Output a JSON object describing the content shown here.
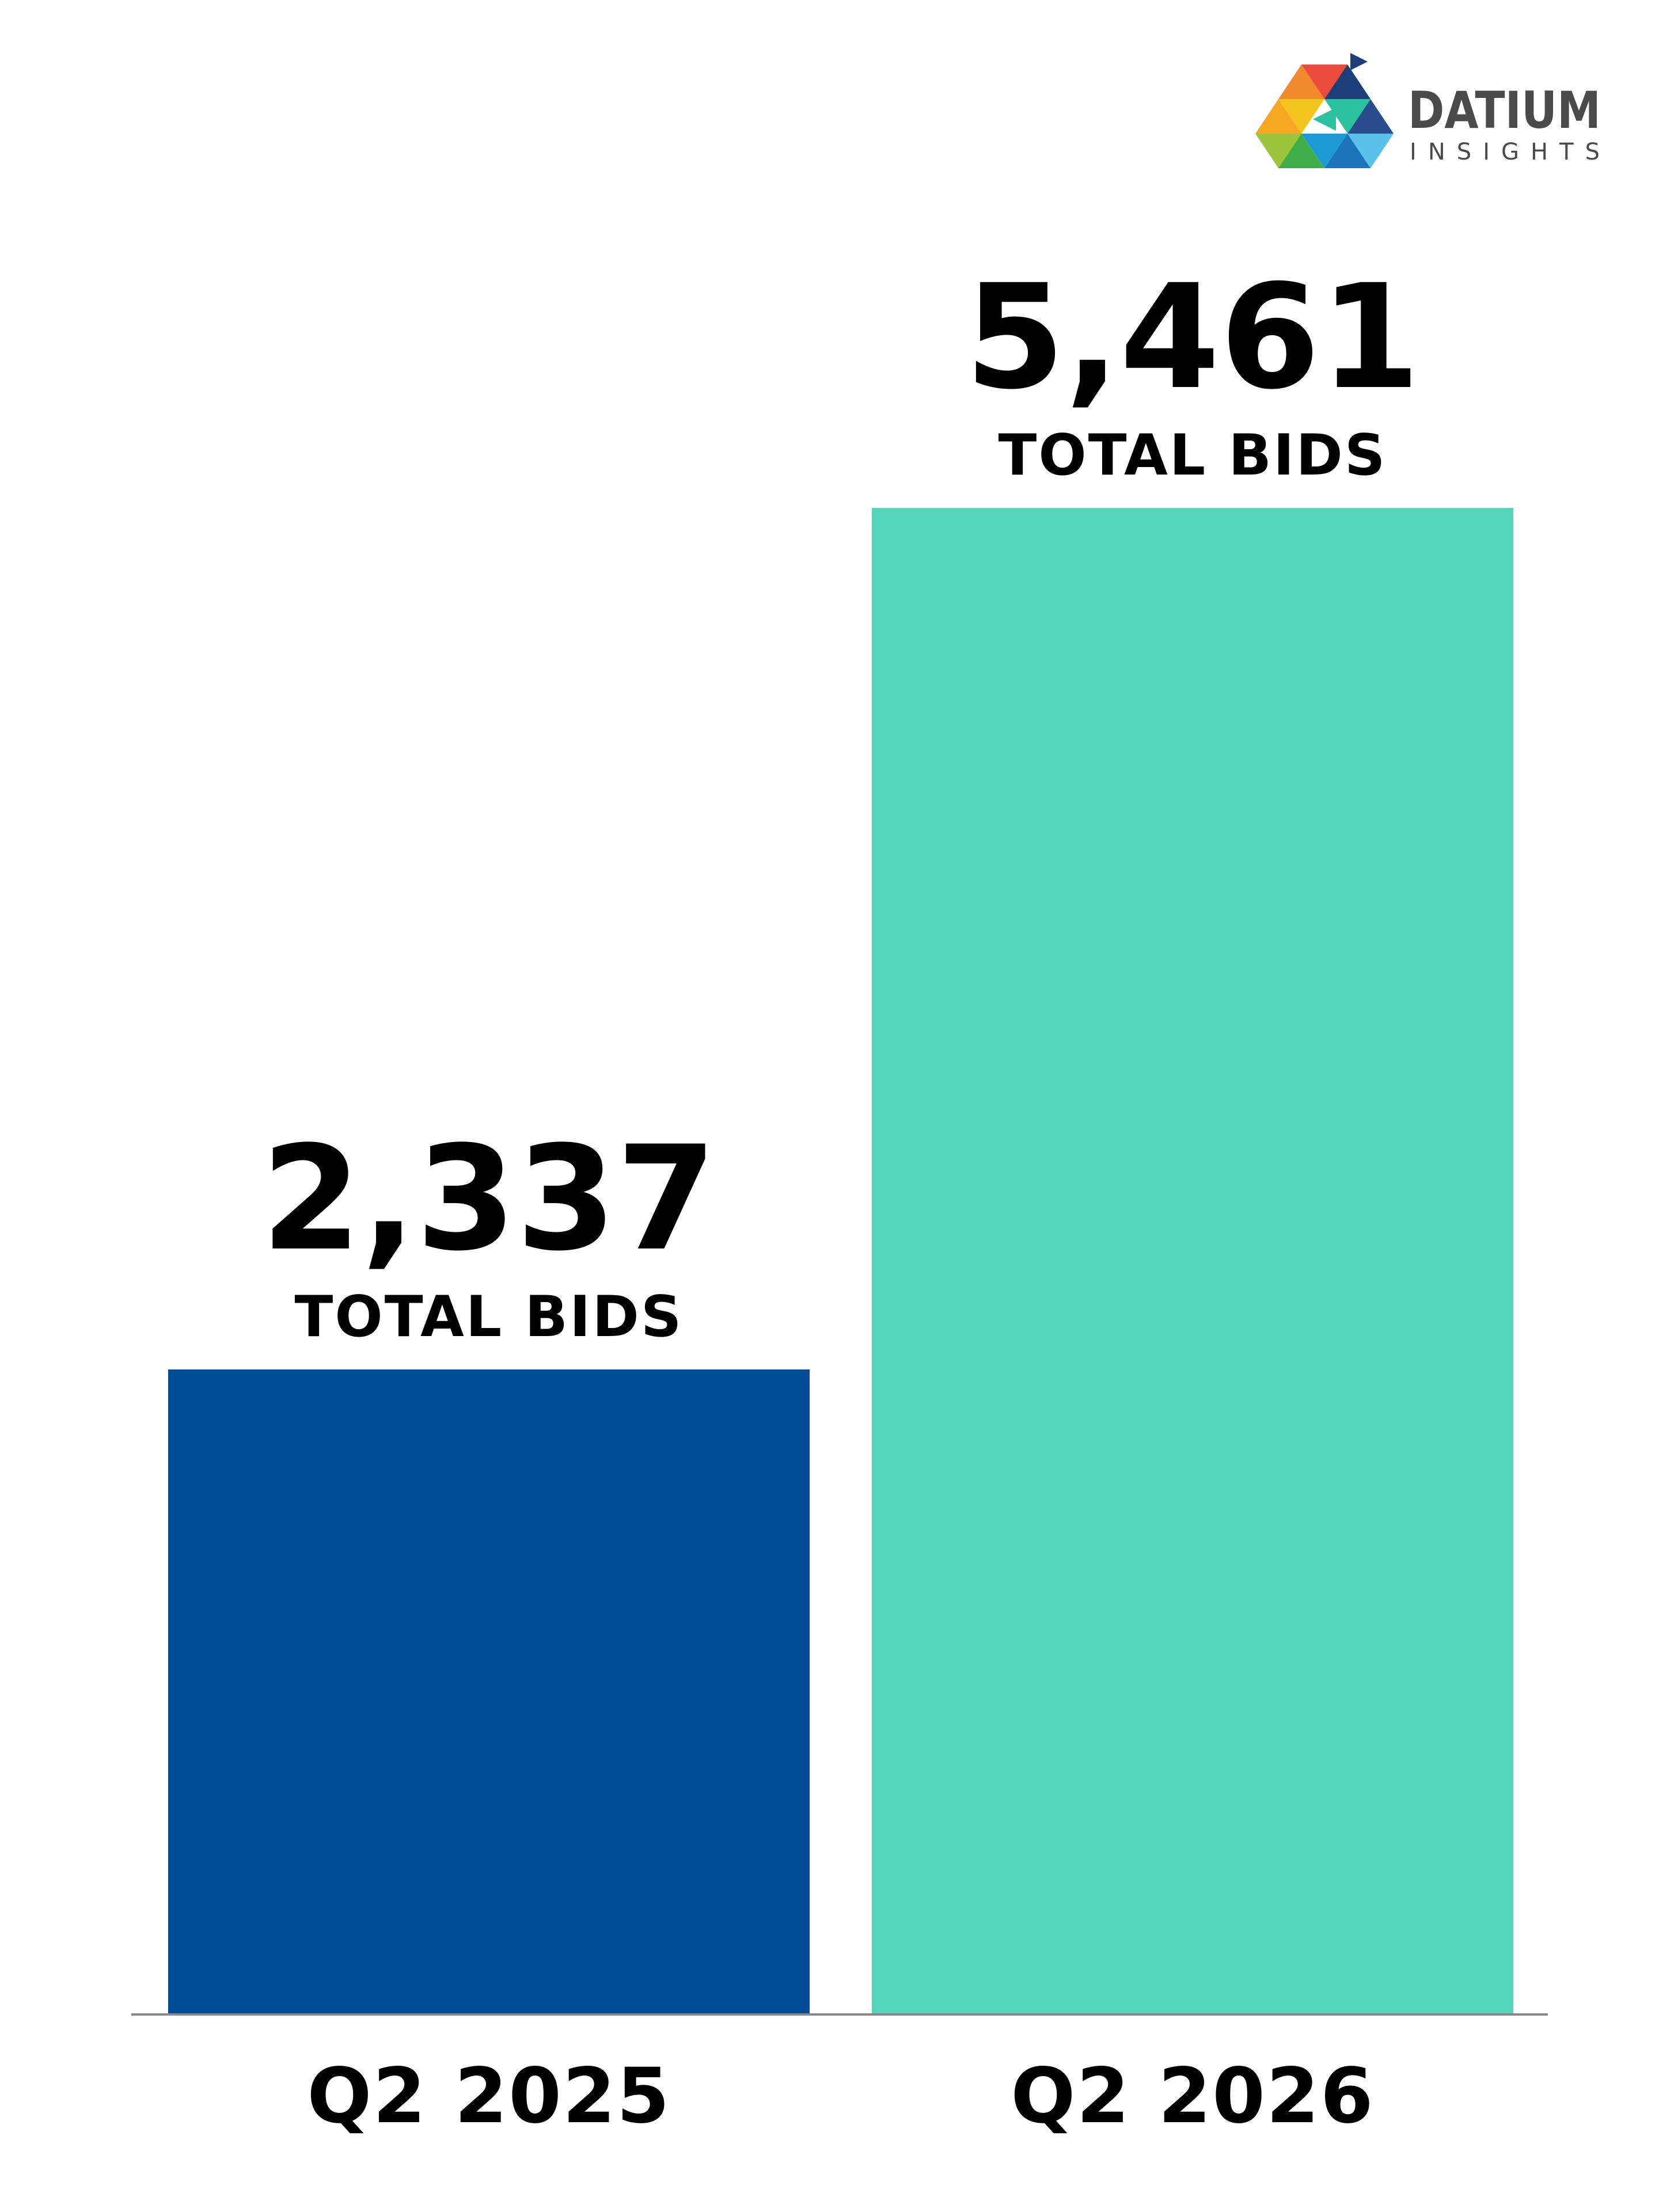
{
  "brand": {
    "name": "DATIUM",
    "tagline": "INSIGHTS"
  },
  "chart_data": {
    "type": "bar",
    "categories": [
      "Q2 2025",
      "Q2 2026"
    ],
    "values": [
      2337,
      5461
    ],
    "value_labels": [
      "2,337",
      "5,461"
    ],
    "unit_labels": [
      "TOTAL BIDS",
      "TOTAL BIDS"
    ],
    "colors": [
      "#004C97",
      "#54D4B8"
    ],
    "ylim": [
      0,
      5461
    ],
    "grid": false,
    "legend": "none"
  }
}
